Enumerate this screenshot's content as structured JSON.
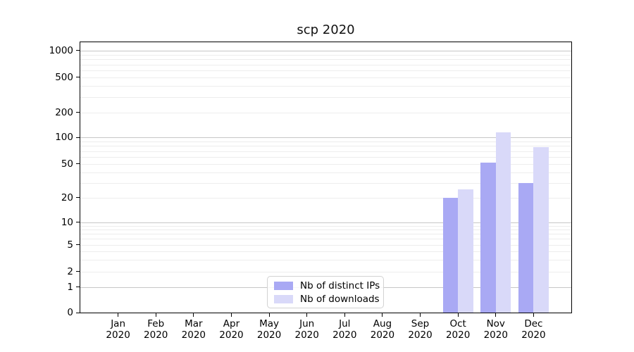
{
  "chart_data": {
    "type": "bar",
    "title": "scp 2020",
    "yscale": "symlog",
    "grid": true,
    "legend_position": "lower center",
    "categories": [
      "Jan",
      "Feb",
      "Mar",
      "Apr",
      "May",
      "Jun",
      "Jul",
      "Aug",
      "Sep",
      "Oct",
      "Nov",
      "Dec"
    ],
    "x_tick_year": "2020",
    "series": [
      {
        "name": "Nb of distinct IPs",
        "color": "#a9a9f4",
        "values": [
          0,
          0,
          0,
          0,
          0,
          0,
          0,
          0,
          0,
          20,
          52,
          30
        ]
      },
      {
        "name": "Nb of downloads",
        "color": "#d9d9f9",
        "values": [
          0,
          0,
          0,
          0,
          0,
          0,
          0,
          0,
          0,
          25,
          115,
          77
        ]
      }
    ],
    "yticks": [
      0,
      1,
      2,
      5,
      10,
      20,
      50,
      100,
      200,
      500,
      1000
    ],
    "ylim": [
      0,
      1250
    ],
    "major_grid_values": [
      1,
      10,
      100,
      1000
    ],
    "minor_grid_values": [
      2,
      3,
      4,
      5,
      6,
      7,
      8,
      9,
      20,
      30,
      40,
      50,
      60,
      70,
      80,
      90,
      200,
      300,
      400,
      500,
      600,
      700,
      800,
      900
    ],
    "y_anchor_fractions": [
      [
        0,
        0
      ],
      [
        1,
        0.0938
      ],
      [
        2,
        0.1523
      ],
      [
        5,
        0.2508
      ],
      [
        10,
        0.3341
      ],
      [
        20,
        0.4245
      ],
      [
        50,
        0.5495
      ],
      [
        100,
        0.6484
      ],
      [
        200,
        0.7396
      ],
      [
        500,
        0.8698
      ],
      [
        1000,
        0.9688
      ]
    ],
    "colors": {
      "major_grid": "#c6c6c6",
      "minor_grid": "#ededed",
      "spine": "#000000",
      "background": "#ffffff"
    }
  }
}
